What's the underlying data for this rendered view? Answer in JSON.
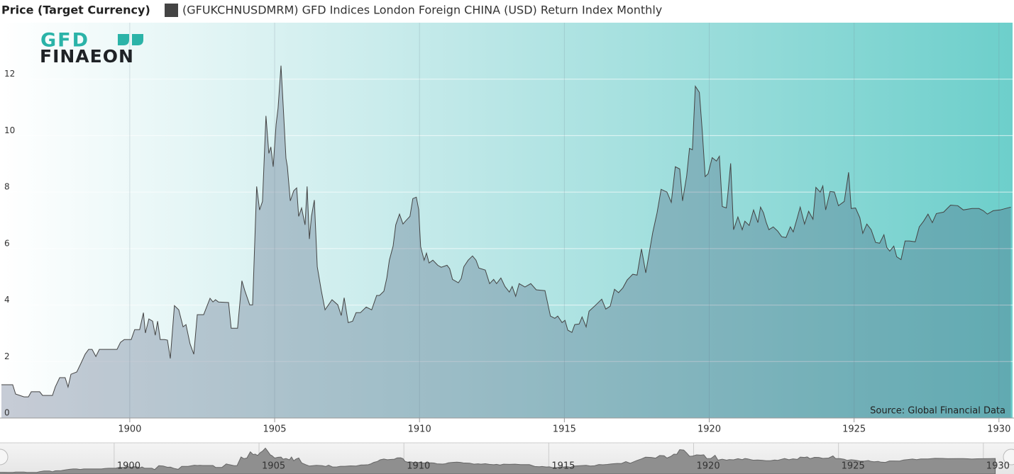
{
  "chart_data": {
    "type": "area",
    "legend_title": "Price (Target Currency)",
    "logo": {
      "top": "GFD",
      "bottom": "FINAEON"
    },
    "source": "Source: Global Financial Data",
    "series": [
      {
        "name": "(GFUKCHNUSDMRM) GFD Indices London Foreign CHINA (USD) Return Index Monthly",
        "color": "#444444",
        "values": [
          1.18,
          1.18,
          0.85,
          0.75,
          0.75,
          0.93,
          0.93,
          0.8,
          0.8,
          1.1,
          1.43,
          1.43,
          1.1,
          1.55,
          1.63,
          1.93,
          2.26,
          2.43,
          2.43,
          2.18,
          2.43,
          2.43,
          2.68,
          2.78,
          2.78,
          3.13,
          3.13,
          3.73,
          3.01,
          3.51,
          3.43,
          2.93,
          3.43,
          2.78,
          2.78,
          2.76,
          2.11,
          3.98,
          3.83,
          3.23,
          3.31,
          2.63,
          2.26,
          3.66,
          3.66,
          4.24,
          4.11,
          4.19,
          4.11,
          4.09,
          3.18,
          3.18,
          4.86,
          4.51,
          4.01,
          4.01,
          8.2,
          7.37,
          7.67,
          10.7,
          9.37,
          9.6,
          8.9,
          10.4,
          10.98,
          12.48,
          11.15,
          9.2,
          8.9,
          7.69,
          8.05,
          8.15,
          7.14,
          7.44,
          6.84,
          8.2,
          6.34,
          7.14,
          7.72,
          5.36,
          4.51,
          3.83,
          4.01,
          4.19,
          4.01,
          3.63,
          4.26,
          3.38,
          3.43,
          3.73,
          3.73,
          3.93,
          3.83,
          4.34,
          4.34,
          4.49,
          4.96,
          5.59,
          6.09,
          6.84,
          7.22,
          6.87,
          6.99,
          7.14,
          7.77,
          7.82,
          7.39,
          6.07,
          5.59,
          5.84,
          5.49,
          5.59,
          5.41,
          5.34,
          5.41,
          5.29,
          4.91,
          4.79,
          4.94,
          5.36,
          5.59,
          5.74,
          5.59,
          5.31,
          5.24,
          4.76,
          4.91,
          4.76,
          4.96,
          4.66,
          4.46,
          4.66,
          4.31,
          4.76,
          4.64,
          4.76,
          4.54,
          4.51,
          3.61,
          3.53,
          3.61,
          3.38,
          3.46,
          3.11,
          3.03,
          3.31,
          3.33,
          3.58,
          3.23,
          3.78,
          4.01,
          4.21,
          3.86,
          3.96,
          4.56,
          4.44,
          4.61,
          4.89,
          5.09,
          5.06,
          5.99,
          5.14,
          5.86,
          6.57,
          7.27,
          8.1,
          8.0,
          7.64,
          8.9,
          8.82,
          7.69,
          8.57,
          9.55,
          9.5,
          11.75,
          11.53,
          10.15,
          8.55,
          8.65,
          9.22,
          9.1,
          9.27,
          7.49,
          7.44,
          7.89,
          9.02,
          6.67,
          7.12,
          6.67,
          6.97,
          6.82,
          7.37,
          6.92,
          7.47,
          7.27,
          6.92,
          6.67,
          6.77,
          6.62,
          6.42,
          6.39,
          6.77,
          6.59,
          7.09,
          7.47,
          6.87,
          7.32,
          7.04,
          8.17,
          8.0,
          8.22,
          7.37,
          8.02,
          8.0,
          7.52,
          7.67,
          8.7,
          7.42,
          7.44,
          7.09,
          6.54,
          6.87,
          6.67,
          6.22,
          6.19,
          6.49,
          6.04,
          5.91,
          6.09,
          5.71,
          5.61,
          6.27,
          6.27,
          6.24,
          6.77,
          6.97,
          7.22,
          6.92,
          7.24,
          7.29,
          7.54,
          7.52,
          7.37,
          7.42,
          7.42,
          7.34,
          7.22,
          7.34,
          7.37,
          7.47
        ]
      }
    ],
    "x": [
      1895.57,
      1895.96,
      1896.06,
      1896.35,
      1896.5,
      1896.6,
      1896.89,
      1896.99,
      1897.33,
      1897.43,
      1897.58,
      1897.77,
      1897.87,
      1897.97,
      1898.17,
      1898.31,
      1898.46,
      1898.58,
      1898.7,
      1898.83,
      1898.95,
      1899.56,
      1899.68,
      1899.81,
      1900.05,
      1900.17,
      1900.34,
      1900.47,
      1900.54,
      1900.66,
      1900.79,
      1900.88,
      1900.96,
      1901.05,
      1901.2,
      1901.3,
      1901.4,
      1901.54,
      1901.69,
      1901.84,
      1901.94,
      1902.08,
      1902.21,
      1902.33,
      1902.55,
      1902.77,
      1902.87,
      1902.96,
      1903.06,
      1903.41,
      1903.5,
      1903.72,
      1903.87,
      1903.97,
      1904.14,
      1904.24,
      1904.38,
      1904.48,
      1904.58,
      1904.7,
      1904.8,
      1904.87,
      1904.95,
      1905.05,
      1905.12,
      1905.22,
      1905.29,
      1905.39,
      1905.44,
      1905.54,
      1905.66,
      1905.76,
      1905.83,
      1905.93,
      1906.05,
      1906.12,
      1906.2,
      1906.27,
      1906.37,
      1906.47,
      1906.61,
      1906.74,
      1906.86,
      1906.98,
      1907.18,
      1907.3,
      1907.4,
      1907.54,
      1907.69,
      1907.81,
      1907.96,
      1908.16,
      1908.35,
      1908.52,
      1908.62,
      1908.77,
      1908.87,
      1908.96,
      1909.09,
      1909.18,
      1909.31,
      1909.43,
      1909.53,
      1909.67,
      1909.77,
      1909.89,
      1909.97,
      1910.04,
      1910.16,
      1910.24,
      1910.33,
      1910.46,
      1910.63,
      1910.75,
      1910.95,
      1911.04,
      1911.14,
      1911.34,
      1911.44,
      1911.53,
      1911.68,
      1911.83,
      1911.95,
      1912.05,
      1912.27,
      1912.42,
      1912.56,
      1912.66,
      1912.81,
      1912.95,
      1913.1,
      1913.2,
      1913.32,
      1913.44,
      1913.64,
      1913.84,
      1914.03,
      1914.33,
      1914.52,
      1914.67,
      1914.77,
      1914.92,
      1915.02,
      1915.12,
      1915.26,
      1915.36,
      1915.51,
      1915.61,
      1915.75,
      1915.85,
      1916.09,
      1916.29,
      1916.43,
      1916.58,
      1916.73,
      1916.87,
      1917.02,
      1917.17,
      1917.36,
      1917.51,
      1917.66,
      1917.81,
      1917.93,
      1918.05,
      1918.2,
      1918.34,
      1918.54,
      1918.69,
      1918.83,
      1918.98,
      1919.08,
      1919.22,
      1919.32,
      1919.42,
      1919.52,
      1919.66,
      1919.76,
      1919.86,
      1919.96,
      1920.1,
      1920.25,
      1920.35,
      1920.45,
      1920.59,
      1920.64,
      1920.74,
      1920.84,
      1920.99,
      1921.14,
      1921.23,
      1921.38,
      1921.53,
      1921.68,
      1921.77,
      1921.87,
      1921.97,
      1922.06,
      1922.21,
      1922.36,
      1922.5,
      1922.65,
      1922.8,
      1922.9,
      1923.04,
      1923.14,
      1923.29,
      1923.43,
      1923.58,
      1923.68,
      1923.83,
      1923.92,
      1924.02,
      1924.17,
      1924.32,
      1924.46,
      1924.66,
      1924.81,
      1924.9,
      1925.05,
      1925.2,
      1925.3,
      1925.44,
      1925.59,
      1925.74,
      1925.88,
      1926.03,
      1926.13,
      1926.23,
      1926.37,
      1926.47,
      1926.62,
      1926.76,
      1926.91,
      1927.11,
      1927.25,
      1927.4,
      1927.55,
      1927.7,
      1927.84,
      1928.09,
      1928.33,
      1928.58,
      1928.77,
      1929.07,
      1929.31,
      1929.46,
      1929.6,
      1929.8,
      1930.04,
      1930.41
    ],
    "xlim": [
      1895.57,
      1930.47
    ],
    "xticks": [
      1900,
      1905,
      1910,
      1915,
      1920,
      1925,
      1930
    ],
    "ylim": [
      0,
      14
    ],
    "yticks": [
      0,
      2,
      4,
      6,
      8,
      10,
      12
    ],
    "grid": true
  }
}
